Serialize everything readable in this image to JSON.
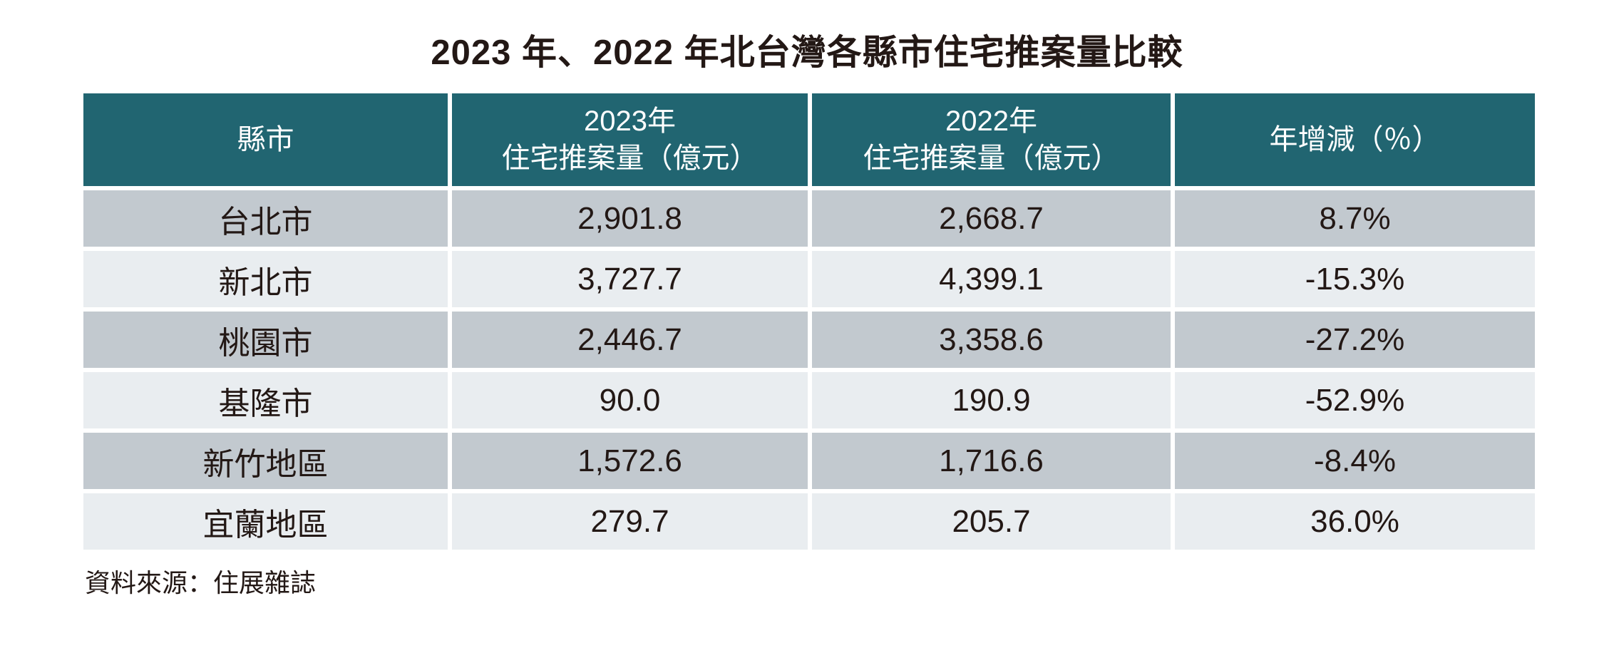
{
  "page": {
    "title": "2023 年、2022 年北台灣各縣市住宅推案量比較",
    "source_note": "資料來源：住展雜誌"
  },
  "colors": {
    "header_bg": "#216571",
    "header_text": "#FFFFFF",
    "row_dark": "#C2C9CF",
    "row_light": "#E9EDF0",
    "text_dark": "#231815"
  },
  "table": {
    "headers": {
      "county": "縣市",
      "y2023_line1": "2023年",
      "y2023_line2": "住宅推案量（億元）",
      "y2022_line1": "2022年",
      "y2022_line2": "住宅推案量（億元）",
      "yoy": "年增減（％）"
    },
    "rows": [
      {
        "county": "台北市",
        "v2023": "2,901.8",
        "v2022": "2,668.7",
        "yoy": "8.7%"
      },
      {
        "county": "新北市",
        "v2023": "3,727.7",
        "v2022": "4,399.1",
        "yoy": "-15.3%"
      },
      {
        "county": "桃園市",
        "v2023": "2,446.7",
        "v2022": "3,358.6",
        "yoy": "-27.2%"
      },
      {
        "county": "基隆市",
        "v2023": "90.0",
        "v2022": "190.9",
        "yoy": "-52.9%"
      },
      {
        "county": "新竹地區",
        "v2023": "1,572.6",
        "v2022": "1,716.6",
        "yoy": "-8.4%"
      },
      {
        "county": "宜蘭地區",
        "v2023": "279.7",
        "v2022": "205.7",
        "yoy": "36.0%"
      }
    ]
  },
  "chart_data": {
    "type": "table",
    "title": "2023 年、2022 年北台灣各縣市住宅推案量比較",
    "columns": [
      "縣市",
      "2023年住宅推案量（億元）",
      "2022年住宅推案量（億元）",
      "年增減（％）"
    ],
    "rows": [
      [
        "台北市",
        2901.8,
        2668.7,
        "8.7%"
      ],
      [
        "新北市",
        3727.7,
        4399.1,
        "-15.3%"
      ],
      [
        "桃園市",
        2446.7,
        3358.6,
        "-27.2%"
      ],
      [
        "基隆市",
        90.0,
        190.9,
        "-52.9%"
      ],
      [
        "新竹地區",
        1572.6,
        1716.6,
        "-8.4%"
      ],
      [
        "宜蘭地區",
        279.7,
        205.7,
        "36.0%"
      ]
    ],
    "source": "資料來源：住展雜誌"
  }
}
